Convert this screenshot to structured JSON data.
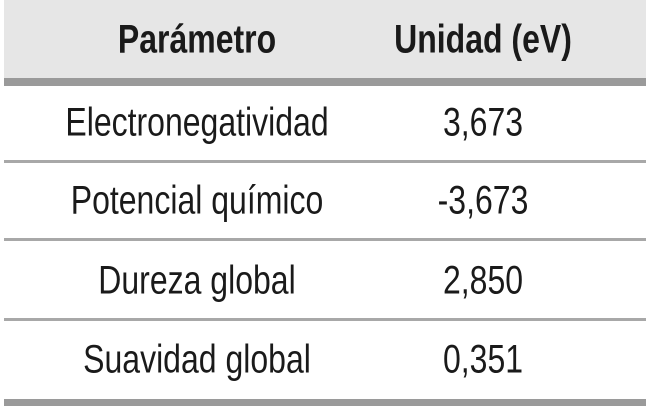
{
  "table": {
    "header": [
      "Parámetro",
      "Unidad (eV)"
    ],
    "rows": [
      [
        "Electronegatividad",
        "3,673"
      ],
      [
        "Potencial químico",
        "-3,673"
      ],
      [
        "Dureza global",
        "2,850"
      ],
      [
        "Suavidad global",
        "0,351"
      ]
    ]
  }
}
